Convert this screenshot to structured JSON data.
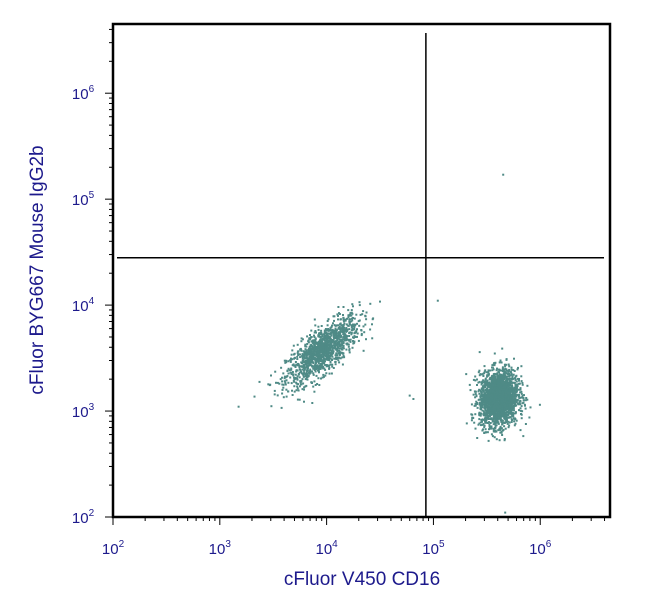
{
  "chart_data": {
    "type": "scatter",
    "title": "",
    "xlabel": "cFluor V450 CD16",
    "ylabel": "cFluor BYG667 Mouse IgG2b",
    "x_scale": "log",
    "y_scale": "log",
    "xlim": [
      100,
      4500000
    ],
    "ylim": [
      100,
      4500000
    ],
    "x_ticks": [
      {
        "base": "10",
        "exp": "2",
        "value": 100
      },
      {
        "base": "10",
        "exp": "3",
        "value": 1000
      },
      {
        "base": "10",
        "exp": "4",
        "value": 10000
      },
      {
        "base": "10",
        "exp": "5",
        "value": 100000
      },
      {
        "base": "10",
        "exp": "6",
        "value": 1000000
      }
    ],
    "y_ticks": [
      {
        "base": "10",
        "exp": "2",
        "value": 100
      },
      {
        "base": "10",
        "exp": "3",
        "value": 1000
      },
      {
        "base": "10",
        "exp": "4",
        "value": 10000
      },
      {
        "base": "10",
        "exp": "5",
        "value": 100000
      },
      {
        "base": "10",
        "exp": "6",
        "value": 1000000
      }
    ],
    "quadrant_gate": {
      "x": 85000,
      "y": 28000
    },
    "populations": [
      {
        "center_x": 9000,
        "center_y": 3800,
        "spread_log_x": 0.17,
        "spread_log_y": 0.16,
        "correlation": 0.75,
        "count": 1300
      },
      {
        "center_x": 400000,
        "center_y": 1350,
        "spread_log_x": 0.09,
        "spread_log_y": 0.13,
        "correlation": 0.1,
        "count": 2200
      }
    ],
    "points": [
      {
        "x": 450000,
        "y": 170000
      },
      {
        "x": 1500,
        "y": 1100
      },
      {
        "x": 110000,
        "y": 11000
      },
      {
        "x": 60000,
        "y": 1400
      },
      {
        "x": 65000,
        "y": 1300
      },
      {
        "x": 470000,
        "y": 110
      }
    ],
    "colors": {
      "points": "#4f8a86",
      "axis_text": "#1d1a8c",
      "frame": "#000000",
      "gate": "#000000"
    },
    "grid": false,
    "legend": "none"
  }
}
